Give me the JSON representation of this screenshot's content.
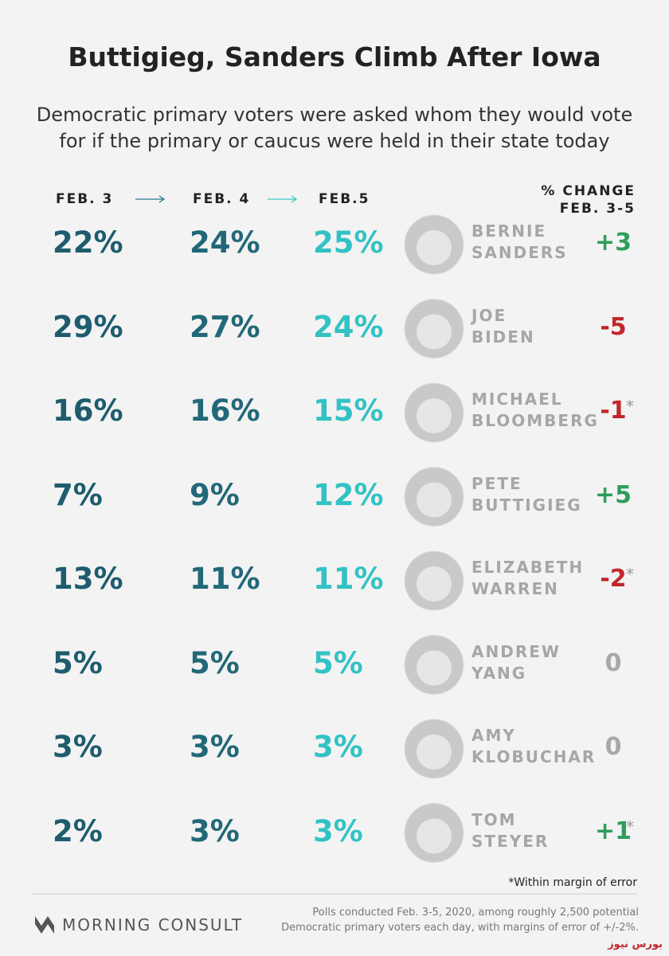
{
  "header": {
    "title": "Buttigieg, Sanders Climb After Iowa",
    "subtitle": [
      "Democratic primary voters were asked whom they would vote",
      "for if the primary or caucus were held in their state today"
    ]
  },
  "columns": {
    "dates": [
      "FEB. 3",
      "FEB. 4",
      "FEB.5"
    ],
    "change": [
      "% CHANGE",
      "FEB. 3-5"
    ],
    "colors": [
      "#1e5c6e",
      "#226878",
      "#33c2c4"
    ],
    "arrow_colors": [
      "#2a7a8a",
      "#3cc6c6"
    ]
  },
  "rows": [
    {
      "values": [
        "22%",
        "24%",
        "25%"
      ],
      "name": [
        "BERNIE",
        "SANDERS"
      ],
      "change": "+3",
      "change_color": "#2e9d5a"
    },
    {
      "values": [
        "29%",
        "27%",
        "24%"
      ],
      "name": [
        "JOE",
        "BIDEN"
      ],
      "change": "-5",
      "change_color": "#c1272d"
    },
    {
      "values": [
        "16%",
        "16%",
        "15%"
      ],
      "name": [
        "MICHAEL",
        "BLOOMBERG"
      ],
      "change": "-1",
      "change_color": "#c1272d",
      "marker": "*"
    },
    {
      "values": [
        "7%",
        "9%",
        "12%"
      ],
      "name": [
        "PETE",
        "BUTTIGIEG"
      ],
      "change": "+5",
      "change_color": "#2e9d5a"
    },
    {
      "values": [
        "13%",
        "11%",
        "11%"
      ],
      "name": [
        "ELIZABETH",
        "WARREN"
      ],
      "change": "-2",
      "change_color": "#c1272d",
      "marker": "*"
    },
    {
      "values": [
        "5%",
        "5%",
        "5%"
      ],
      "name": [
        "ANDREW",
        "YANG"
      ],
      "change": "0",
      "change_color": "#a8a8a8"
    },
    {
      "values": [
        "3%",
        "3%",
        "3%"
      ],
      "name": [
        "AMY",
        "KLOBUCHAR"
      ],
      "change": "0",
      "change_color": "#a8a8a8"
    },
    {
      "values": [
        "2%",
        "3%",
        "3%"
      ],
      "name": [
        "TOM",
        "STEYER"
      ],
      "change": "+1",
      "change_color": "#2e9d5a",
      "marker": "*"
    }
  ],
  "footnote": "*Within margin of error",
  "footer": {
    "logo": "MORNING CONSULT",
    "source": [
      "Polls conducted Feb. 3-5, 2020, among roughly 2,500 potential",
      "Democratic primary voters each day, with margins of error of +/-2%."
    ]
  },
  "watermark": "بورس نیوز"
}
